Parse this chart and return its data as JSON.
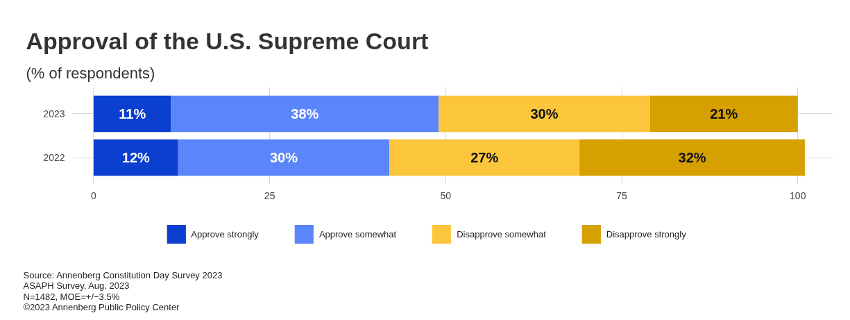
{
  "chart_data": {
    "type": "bar",
    "orientation": "horizontal",
    "stacked": true,
    "title": "Approval of the U.S. Supreme Court",
    "subtitle": "(% of respondents)",
    "categories": [
      "2023",
      "2022"
    ],
    "series": [
      {
        "name": "Approve strongly",
        "color": "#0a3fcf",
        "values": [
          11,
          12
        ],
        "value_labels": [
          "11%",
          "12%"
        ]
      },
      {
        "name": "Approve somewhat",
        "color": "#5b85fb",
        "values": [
          38,
          30
        ],
        "value_labels": [
          "38%",
          "30%"
        ]
      },
      {
        "name": "Disapprove somewhat",
        "color": "#fcc63c",
        "values": [
          30,
          27
        ],
        "value_labels": [
          "30%",
          "27%"
        ]
      },
      {
        "name": "Disapprove strongly",
        "color": "#d6a000",
        "values": [
          21,
          32
        ],
        "value_labels": [
          "21%",
          "32%"
        ]
      }
    ],
    "xlim": [
      -3,
      105
    ],
    "xticks": [
      0,
      25,
      50,
      75,
      100
    ],
    "grid": true,
    "legend": "bottom",
    "annotations": [
      "Source: Annenberg Constitution Day Survey 2023",
      "ASAPH Survey, Aug. 2023",
      "N=1482, MOE=+/−3.5%",
      "©2023 Annenberg Public Policy Center"
    ]
  }
}
